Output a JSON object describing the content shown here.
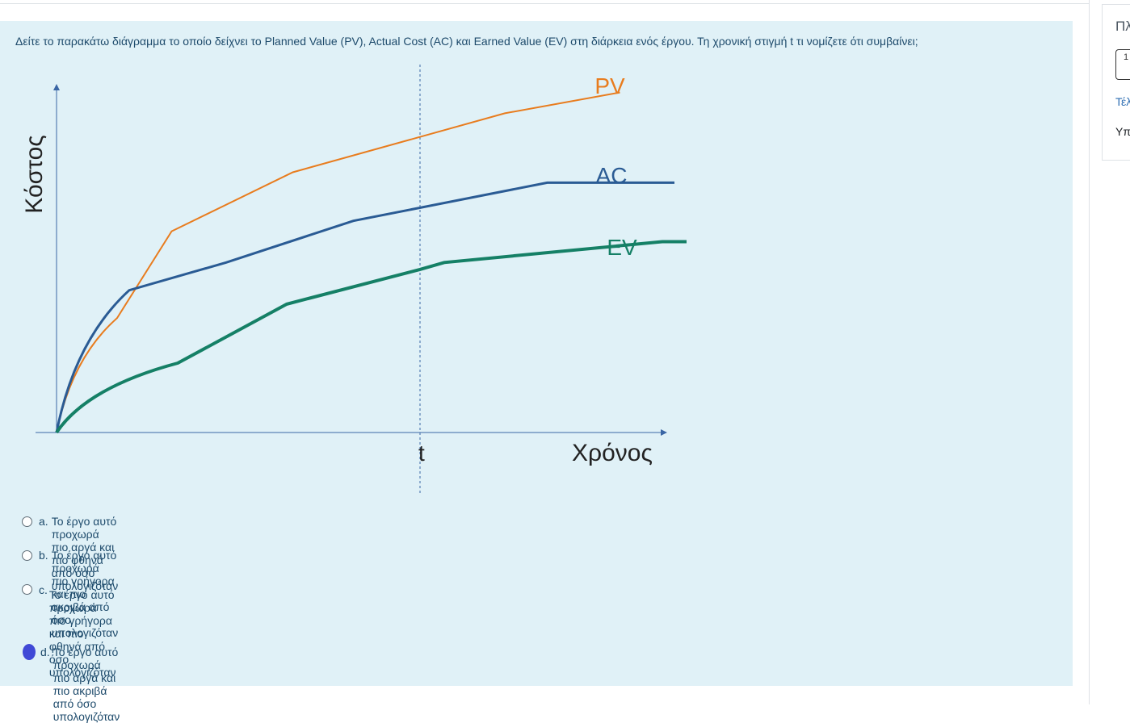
{
  "question": {
    "text": "Δείτε το παρακάτω διάγραμμα το οποίο δείχνει το Planned Value (PV), Actual Cost (AC) και Earned Value (EV) στη διάρκεια ενός έργου. Τη χρονική στιγμή t τι νομίζετε ότι συμβαίνει;"
  },
  "chart_data": {
    "type": "line",
    "ylabel": "Κόστος",
    "xlabel": "Χρόνος",
    "marker_label": "t",
    "marker_x": 0.6,
    "series": [
      {
        "name": "PV",
        "color": "#e87c1e",
        "x": [
          0,
          0.1,
          0.19,
          0.39,
          0.74,
          0.93
        ],
        "y": [
          0,
          0.33,
          0.58,
          0.75,
          0.92,
          0.98
        ]
      },
      {
        "name": "AC",
        "color": "#2a5b94",
        "x": [
          0,
          0.12,
          0.28,
          0.49,
          0.81,
          1.02
        ],
        "y": [
          0,
          0.41,
          0.49,
          0.61,
          0.72,
          0.72
        ]
      },
      {
        "name": "EV",
        "color": "#158066",
        "x": [
          0,
          0.2,
          0.38,
          0.6,
          0.64,
          1.0,
          1.04
        ],
        "y": [
          0,
          0.2,
          0.37,
          0.47,
          0.49,
          0.55,
          0.55
        ]
      }
    ]
  },
  "answers": [
    {
      "letter": "a.",
      "text": "Το έργο αυτό προχωρά πιο αργά και πιο φθηνά από όσο υπολογιζόταν",
      "selected": false
    },
    {
      "letter": "b.",
      "text": "Το έργο αυτό προχωρά πιο γρήγορα και πιο ακριβά από όσο υπολογιζόταν",
      "selected": false
    },
    {
      "letter": "c.",
      "text": "Το έργο αυτό προχωρά πιο γρήγορα και πιο φθηνά από όσο υπολογιζόταν",
      "selected": false
    },
    {
      "letter": "d.",
      "text": "Το έργο αυτό προχωρά πιο αργά και πιο ακριβά από όσο υπολογιζόταν",
      "selected": true
    }
  ],
  "sidebar": {
    "title": "Πλ",
    "nav_button": "1",
    "link": "Τέλ",
    "text": "Υπ"
  }
}
